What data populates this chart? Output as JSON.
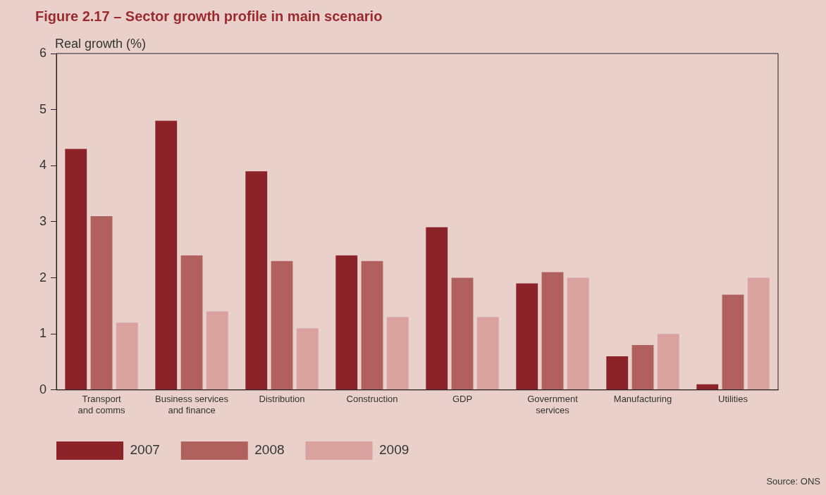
{
  "chart_data": {
    "type": "bar",
    "title": "Figure 2.17 – Sector growth profile in main scenario",
    "ylabel": "Real growth (%)",
    "categories": [
      "Transport\nand comms",
      "Business services\nand finance",
      "Distribution",
      "Construction",
      "GDP",
      "Government\nservices",
      "Manufacturing",
      "Utilities"
    ],
    "series": [
      {
        "name": "2007",
        "color": "#8b2329",
        "values": [
          4.3,
          4.8,
          3.9,
          2.4,
          2.9,
          1.9,
          0.6,
          0.1
        ]
      },
      {
        "name": "2008",
        "color": "#b0605d",
        "values": [
          3.1,
          2.4,
          2.3,
          2.3,
          2.0,
          2.1,
          0.8,
          1.7
        ]
      },
      {
        "name": "2009",
        "color": "#d9a29e",
        "values": [
          1.2,
          1.4,
          1.1,
          1.3,
          1.3,
          2.0,
          1.0,
          2.0
        ]
      }
    ],
    "ylim": [
      0,
      6
    ],
    "yticks": [
      0,
      1,
      2,
      3,
      4,
      5,
      6
    ],
    "grid": false,
    "legend": "bottom left",
    "annotations": [
      "Source: ONS"
    ]
  }
}
